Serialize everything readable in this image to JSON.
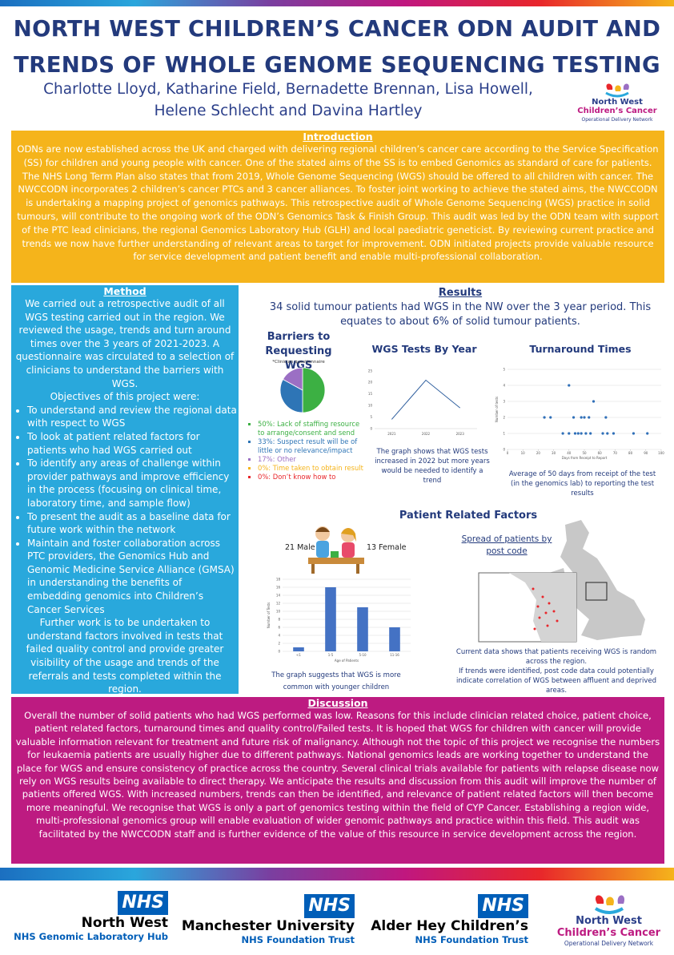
{
  "header": {
    "title": "NORTH WEST CHILDREN’S CANCER ODN AUDIT AND TRENDS OF WHOLE GENOME SEQUENCING TESTING",
    "authors": [
      "Charlotte Lloyd, Katharine Field, Bernadette Brennan, Lisa Howell,",
      "Helene Schlecht and Davina Hartley"
    ],
    "logo": [
      "North West",
      "Children’s Cancer",
      "Operational Delivery Network"
    ]
  },
  "introduction": {
    "heading": "Introduction",
    "text": "ODNs are now established across the UK and charged with delivering regional children’s cancer care according to the Service Specification (SS) for children and young people with cancer. One of the stated aims of the SS is to embed Genomics as standard of care for patients. The NHS Long Term Plan also states that from 2019, Whole Genome Sequencing (WGS) should be offered to all children with cancer. The NWCCODN incorporates 2 children’s cancer PTCs and 3 cancer alliances. To foster joint working to achieve the stated aims, the NWCCODN is undertaking a mapping project of genomics pathways. This retrospective audit of Whole Genome Sequencing (WGS) practice in solid tumours, will contribute to the ongoing work of the ODN’s Genomics Task & Finish Group. This audit was led by the ODN team with support of the PTC lead clinicians, the regional Genomics Laboratory Hub (GLH) and local paediatric geneticist. By reviewing current practice and trends we now have further understanding of relevant areas to target for improvement. ODN initiated projects provide valuable resource for service development and patient benefit and enable multi-professional collaboration."
  },
  "method": {
    "heading": "Method",
    "text": "We carried out a retrospective audit of all WGS testing carried out in the region. We reviewed the usage, trends and turn around times over the 3 years of 2021-2023.  A questionnaire was circulated to a selection of clinicians to understand the barriers with WGS.",
    "objectives_heading": "Objectives of this project were:",
    "objectives": [
      "To understand and review the regional data with respect to WGS",
      "To look at patient related factors for patients who had WGS carried out",
      "To identify any areas of challenge within provider pathways and improve efficiency in the process (focusing on clinical time, laboratory time, and sample flow)",
      "To present the audit as a baseline data for future work within the network",
      "Maintain and foster collaboration across PTC providers, the Genomics Hub and Genomic Medicine Service Alliance (GMSA) in understanding the benefits of embedding genomics into Children’s Cancer Services"
    ],
    "further_work": "Further work is to be undertaken to understand factors involved in tests that failed quality control and provide greater visibility of the usage and trends of the referrals and tests completed within the region."
  },
  "results": {
    "heading": "Results",
    "summary": "34 solid tumour patients had WGS in the NW over the 3 year period. This equates to about 6% of solid tumour patients.",
    "barriers": {
      "type": "pie",
      "title": "Barriers to Requesting WGS",
      "subtitle": "*Clinician questionnaire",
      "labels": [
        "50%: Lack of staffing resource to arrange/consent and send",
        "33%: Suspect result will be of little or no relevance/impact",
        "17%: Other",
        "0%: Time taken to obtain result",
        "0%: Don’t know how to"
      ],
      "values": [
        50,
        33,
        17,
        0,
        0
      ],
      "colors": [
        "#3cb043",
        "#2e75b6",
        "#9b6fc4",
        "#f5b41b",
        "#e8262b"
      ]
    },
    "wgs_by_year": {
      "type": "line",
      "title": "WGS Tests By Year",
      "categories": [
        "2021",
        "2022",
        "2023"
      ],
      "values": [
        4,
        21,
        9
      ],
      "color": "#2f5f9e",
      "ylim": [
        0,
        25
      ],
      "yticks": [
        0,
        5,
        10,
        15,
        20,
        25
      ],
      "caption": "The graph shows that WGS tests increased in 2022 but more years would be needed to identify a trend"
    },
    "turnaround": {
      "type": "scatter",
      "title": "Turnaround Times",
      "x_label": "Days from Receipt to Report",
      "y_label": "Number of tests",
      "x": [
        24,
        28,
        36,
        40,
        40,
        43,
        44,
        46,
        48,
        48,
        50,
        51,
        54,
        53,
        56,
        62,
        64,
        65,
        69,
        82,
        91
      ],
      "y": [
        2,
        2,
        1,
        4,
        1,
        2,
        1,
        1,
        1,
        2,
        2,
        1,
        1,
        2,
        3,
        1,
        2,
        1,
        1,
        1,
        1
      ],
      "color": "#2f6fb8",
      "xlim": [
        0,
        100
      ],
      "xticks": [
        0,
        10,
        20,
        30,
        40,
        50,
        60,
        70,
        80,
        90,
        100
      ],
      "ylim": [
        0,
        5
      ],
      "yticks": [
        0,
        1,
        2,
        3,
        4,
        5
      ],
      "grid": true,
      "caption": "Average of 50 days from receipt of the test (in the genomics lab) to reporting the test results"
    },
    "patient_factors": {
      "heading": "Patient Related Factors",
      "male": "21 Male",
      "female": "13 Female",
      "map_title": "Spread of patients by post code",
      "map_caption": [
        "Current data shows that patients receiving WGS is random across the region.",
        "If trends were identified, post code data could potentially indicate correlation of WGS between affluent and deprived areas."
      ],
      "age_chart": {
        "type": "bar",
        "x_label": "Age of Patients",
        "y_label": "Number of Tests",
        "categories": [
          "<1",
          "1-5",
          "5-10",
          "11-16"
        ],
        "values": [
          1,
          16,
          11,
          6
        ],
        "color": "#4472c4",
        "ylim": [
          0,
          18
        ],
        "yticks": [
          0,
          2,
          4,
          6,
          8,
          10,
          12,
          14,
          16,
          18
        ],
        "grid": true,
        "caption": "The graph suggests that WGS is more common with younger children"
      }
    }
  },
  "discussion": {
    "heading": "Discussion",
    "text": "Overall the number of solid patients who had WGS performed was low. Reasons for this include clinician related choice, patient choice, patient related factors, turnaround times and quality control/Failed tests.  It is hoped that WGS for children with cancer will provide valuable information relevant for treatment and future risk of malignancy. Although not the topic of this project we recognise the numbers for leukaemia patients are usually higher due to different pathways. National genomics leads are working together to understand the place for WGS and ensure consistency of practice across the country. Several clinical trials available for patients with relapse disease now rely on WGS results being available to direct therapy. We anticipate the results and discussion from this audit will improve the number of patients offered WGS. With increased numbers, trends can then be identified, and relevance of patient related factors will then become more meaningful. We recognise that WGS is only a part of genomics testing within the field of CYP Cancer. Establishing a region wide, multi-professional genomics group will enable evaluation of wider genomic pathways and practice within this field. This audit was facilitated by the NWCCODN staff and is further evidence of the value of this resource in service development across the region."
  },
  "footer": {
    "logos": [
      {
        "badge": "NHS",
        "name": "North West",
        "sub": "NHS Genomic Laboratory Hub"
      },
      {
        "badge": "NHS",
        "name": "Manchester University",
        "sub": "NHS Foundation Trust"
      },
      {
        "badge": "NHS",
        "name": "Alder Hey Children’s",
        "sub": "NHS Foundation Trust"
      }
    ],
    "odn_logo": [
      "North West",
      "Children’s Cancer",
      "Operational Delivery Network"
    ]
  }
}
